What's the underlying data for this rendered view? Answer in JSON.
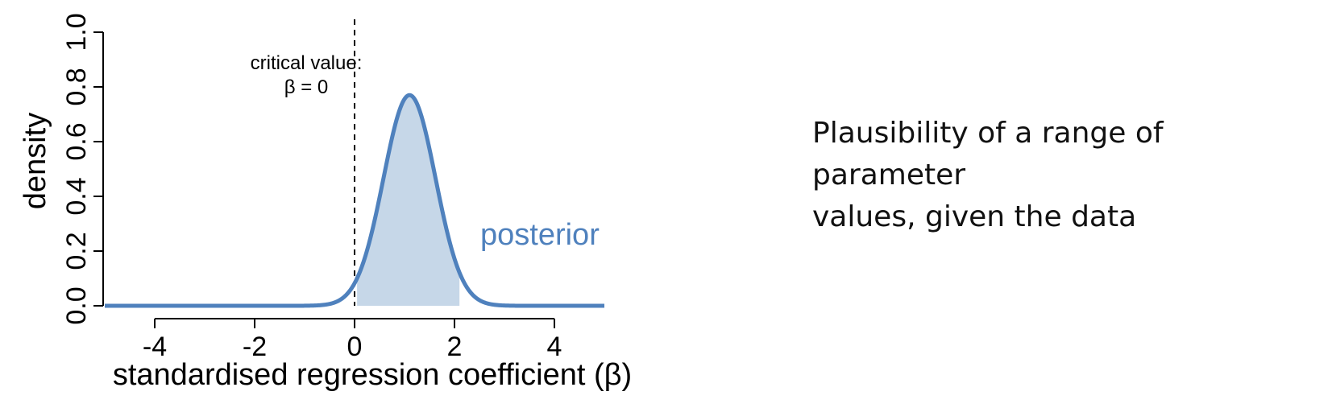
{
  "chart_data": {
    "type": "area",
    "xlabel": "standardised regression coefficient (β)",
    "ylabel": "density",
    "xlim": [
      -5,
      5
    ],
    "ylim": [
      0,
      1.0
    ],
    "x_ticks": [
      "-4",
      "-2",
      "0",
      "2",
      "4"
    ],
    "x_tick_values": [
      -4,
      -2,
      0,
      2,
      4
    ],
    "y_ticks": [
      "0.0",
      "0.2",
      "0.4",
      "0.6",
      "0.8",
      "1.0"
    ],
    "y_tick_values": [
      0,
      0.2,
      0.4,
      0.6,
      0.8,
      1.0
    ],
    "series": [
      {
        "name": "posterior",
        "color": "#4f81bd",
        "distribution": "normal",
        "mean": 1.1,
        "sd": 0.52,
        "peak_density": 0.77,
        "shaded_interval": [
          0.05,
          2.1
        ],
        "shade_color": "#c6d7e8"
      }
    ],
    "reference_line": {
      "x": 0,
      "style": "dashed",
      "label_line1": "critical value:",
      "label_line2": "β = 0"
    }
  },
  "caption": {
    "line1": "Plausibility of a range of parameter",
    "line2": "values, given the data"
  }
}
